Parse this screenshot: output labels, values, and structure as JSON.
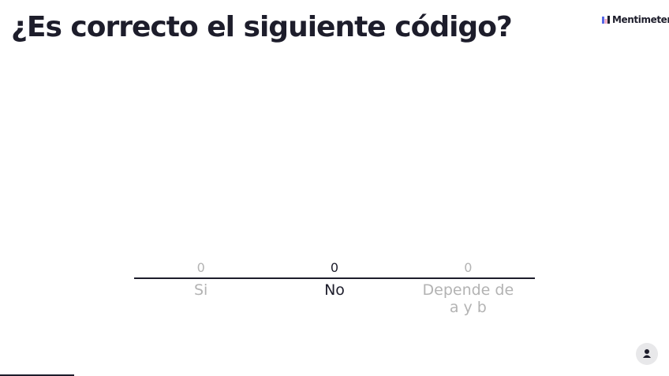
{
  "brand": "Mentimeter",
  "chart_data": {
    "type": "bar",
    "title": "¿Es correcto el siguiente código?",
    "categories": [
      "Si",
      "No",
      "Depende de a y b"
    ],
    "values": [
      0,
      0,
      0
    ],
    "colors": [
      "#b3b3b3",
      "#1d1d2b",
      "#b3b3b3"
    ]
  }
}
